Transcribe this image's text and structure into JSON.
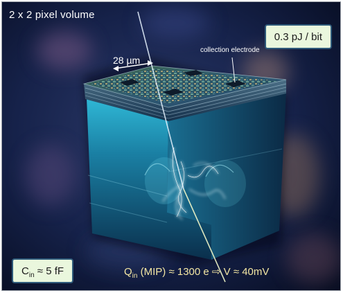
{
  "title": "2 x 2 pixel volume",
  "power_label": "0.3 pJ / bit",
  "electrode_label": "collection electrode",
  "dimension_label": "28 µm",
  "capacitance": {
    "symbol": "C",
    "subscript": "in",
    "value": " ≈ 5 fF"
  },
  "charge": {
    "symbol": "Q",
    "subscript": "in",
    "text": " (MIP) ≈ 1300 e ⇨ V ≈ 40mV"
  },
  "colors": {
    "box_fill": "#eaf7dd",
    "box_border": "#2e5a7a",
    "charge_text": "#f3e6a3",
    "crystal_cyan": "#39c6dc",
    "background": "#0b1530"
  }
}
